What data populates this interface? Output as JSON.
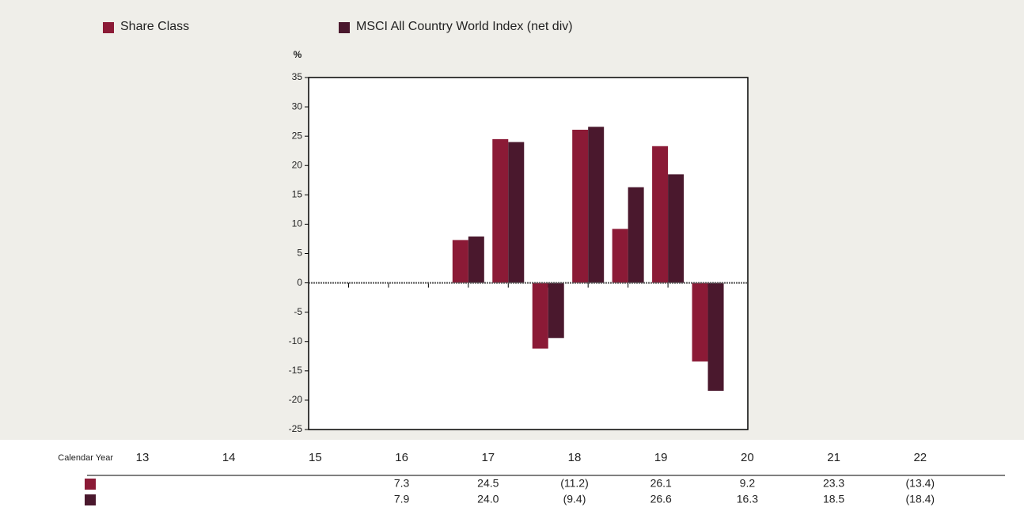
{
  "chart_data": {
    "type": "bar",
    "y_label": "%",
    "x_label": "Calendar Year",
    "categories": [
      "13",
      "14",
      "15",
      "16",
      "17",
      "18",
      "19",
      "20",
      "21",
      "22"
    ],
    "series": [
      {
        "name": "Share Class",
        "color": "#8b1a36",
        "values": [
          null,
          null,
          null,
          7.3,
          24.5,
          -11.2,
          26.1,
          9.2,
          23.3,
          -13.4
        ],
        "value_labels": [
          null,
          null,
          null,
          "7.3",
          "24.5",
          "(11.2)",
          "26.1",
          "9.2",
          "23.3",
          "(13.4)"
        ]
      },
      {
        "name": "MSCI All Country World Index (net div)",
        "color": "#4a182d",
        "values": [
          null,
          null,
          null,
          7.9,
          24.0,
          -9.4,
          26.6,
          16.3,
          18.5,
          -18.4
        ],
        "value_labels": [
          null,
          null,
          null,
          "7.9",
          "24.0",
          "(9.4)",
          "26.6",
          "16.3",
          "18.5",
          "(18.4)"
        ]
      }
    ],
    "ylim": [
      -25,
      35
    ],
    "yticks": [
      -25,
      -20,
      -15,
      -10,
      -5,
      0,
      5,
      10,
      15,
      20,
      25,
      30,
      35
    ],
    "grid": false
  }
}
